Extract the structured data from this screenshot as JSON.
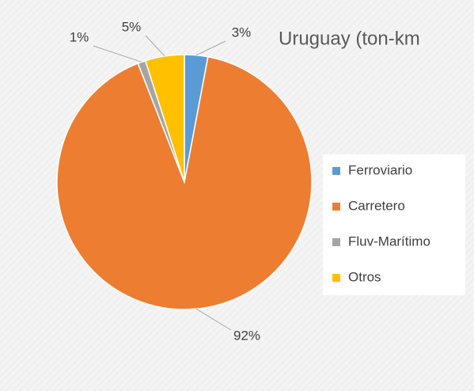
{
  "chart_data": {
    "type": "pie",
    "title": "Uruguay (ton-km",
    "categories": [
      "Ferroviario",
      "Carretero",
      "Fluv-Marítimo",
      "Otros"
    ],
    "values": [
      3,
      92,
      1,
      5
    ],
    "value_labels": [
      "3%",
      "92%",
      "1%",
      "5%"
    ],
    "colors": [
      "#5b9bd5",
      "#ed7d31",
      "#a5a5a5",
      "#ffc000"
    ],
    "legend": "right"
  }
}
